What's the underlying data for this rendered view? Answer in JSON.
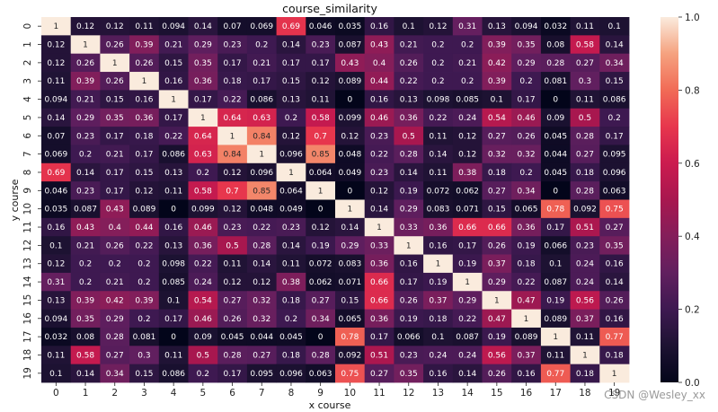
{
  "chart_data": {
    "type": "heatmap",
    "title": "course_similarity",
    "xlabel": "x course",
    "ylabel": "y course",
    "x_ticks": [
      "0",
      "1",
      "2",
      "3",
      "4",
      "5",
      "6",
      "7",
      "8",
      "9",
      "10",
      "11",
      "12",
      "13",
      "14",
      "15",
      "16",
      "17",
      "18",
      "19"
    ],
    "y_ticks": [
      "0",
      "1",
      "2",
      "3",
      "4",
      "5",
      "6",
      "7",
      "8",
      "9",
      "10",
      "11",
      "12",
      "13",
      "14",
      "15",
      "16",
      "17",
      "18",
      "19"
    ],
    "colorbar": {
      "min": 0.0,
      "max": 1.0,
      "ticks": [
        "0.0",
        "0.2",
        "0.4",
        "0.6",
        "0.8",
        "1.0"
      ]
    },
    "values": [
      [
        "1",
        "0.12",
        "0.12",
        "0.11",
        "0.094",
        "0.14",
        "0.07",
        "0.069",
        "0.69",
        "0.046",
        "0.035",
        "0.16",
        "0.1",
        "0.12",
        "0.31",
        "0.13",
        "0.094",
        "0.032",
        "0.11",
        "0.1"
      ],
      [
        "0.12",
        "1",
        "0.26",
        "0.39",
        "0.21",
        "0.29",
        "0.23",
        "0.2",
        "0.14",
        "0.23",
        "0.087",
        "0.43",
        "0.21",
        "0.2",
        "0.2",
        "0.39",
        "0.35",
        "0.08",
        "0.58",
        "0.14"
      ],
      [
        "0.12",
        "0.26",
        "1",
        "0.26",
        "0.15",
        "0.35",
        "0.17",
        "0.21",
        "0.17",
        "0.17",
        "0.43",
        "0.4",
        "0.26",
        "0.2",
        "0.21",
        "0.42",
        "0.29",
        "0.28",
        "0.27",
        "0.34"
      ],
      [
        "0.11",
        "0.39",
        "0.26",
        "1",
        "0.16",
        "0.36",
        "0.18",
        "0.17",
        "0.15",
        "0.12",
        "0.089",
        "0.44",
        "0.22",
        "0.2",
        "0.2",
        "0.39",
        "0.2",
        "0.081",
        "0.3",
        "0.15"
      ],
      [
        "0.094",
        "0.21",
        "0.15",
        "0.16",
        "1",
        "0.17",
        "0.22",
        "0.086",
        "0.13",
        "0.11",
        "0",
        "0.16",
        "0.13",
        "0.098",
        "0.085",
        "0.1",
        "0.17",
        "0",
        "0.11",
        "0.086"
      ],
      [
        "0.14",
        "0.29",
        "0.35",
        "0.36",
        "0.17",
        "1",
        "0.64",
        "0.63",
        "0.2",
        "0.58",
        "0.099",
        "0.46",
        "0.36",
        "0.22",
        "0.24",
        "0.54",
        "0.46",
        "0.09",
        "0.5",
        "0.2"
      ],
      [
        "0.07",
        "0.23",
        "0.17",
        "0.18",
        "0.22",
        "0.64",
        "1",
        "0.84",
        "0.12",
        "0.7",
        "0.12",
        "0.23",
        "0.5",
        "0.11",
        "0.12",
        "0.27",
        "0.26",
        "0.045",
        "0.28",
        "0.17"
      ],
      [
        "0.069",
        "0.2",
        "0.21",
        "0.17",
        "0.086",
        "0.63",
        "0.84",
        "1",
        "0.096",
        "0.85",
        "0.048",
        "0.22",
        "0.28",
        "0.14",
        "0.12",
        "0.32",
        "0.32",
        "0.044",
        "0.27",
        "0.095"
      ],
      [
        "0.69",
        "0.14",
        "0.17",
        "0.15",
        "0.13",
        "0.2",
        "0.12",
        "0.096",
        "1",
        "0.064",
        "0.049",
        "0.23",
        "0.14",
        "0.11",
        "0.38",
        "0.18",
        "0.2",
        "0.045",
        "0.18",
        "0.096"
      ],
      [
        "0.046",
        "0.23",
        "0.17",
        "0.12",
        "0.11",
        "0.58",
        "0.7",
        "0.85",
        "0.064",
        "1",
        "0",
        "0.12",
        "0.19",
        "0.072",
        "0.062",
        "0.27",
        "0.34",
        "0",
        "0.28",
        "0.063"
      ],
      [
        "0.035",
        "0.087",
        "0.43",
        "0.089",
        "0",
        "0.099",
        "0.12",
        "0.048",
        "0.049",
        "0",
        "1",
        "0.14",
        "0.29",
        "0.083",
        "0.071",
        "0.15",
        "0.065",
        "0.78",
        "0.092",
        "0.75"
      ],
      [
        "0.16",
        "0.43",
        "0.4",
        "0.44",
        "0.16",
        "0.46",
        "0.23",
        "0.22",
        "0.23",
        "0.12",
        "0.14",
        "1",
        "0.33",
        "0.36",
        "0.66",
        "0.66",
        "0.36",
        "0.17",
        "0.51",
        "0.27"
      ],
      [
        "0.1",
        "0.21",
        "0.26",
        "0.22",
        "0.13",
        "0.36",
        "0.5",
        "0.28",
        "0.14",
        "0.19",
        "0.29",
        "0.33",
        "1",
        "0.16",
        "0.17",
        "0.26",
        "0.19",
        "0.066",
        "0.23",
        "0.35"
      ],
      [
        "0.12",
        "0.2",
        "0.2",
        "0.2",
        "0.098",
        "0.22",
        "0.11",
        "0.14",
        "0.11",
        "0.072",
        "0.083",
        "0.36",
        "0.16",
        "1",
        "0.19",
        "0.37",
        "0.18",
        "0.1",
        "0.24",
        "0.16"
      ],
      [
        "0.31",
        "0.2",
        "0.21",
        "0.2",
        "0.085",
        "0.24",
        "0.12",
        "0.12",
        "0.38",
        "0.062",
        "0.071",
        "0.66",
        "0.17",
        "0.19",
        "1",
        "0.29",
        "0.22",
        "0.087",
        "0.24",
        "0.14"
      ],
      [
        "0.13",
        "0.39",
        "0.42",
        "0.39",
        "0.1",
        "0.54",
        "0.27",
        "0.32",
        "0.18",
        "0.27",
        "0.15",
        "0.66",
        "0.26",
        "0.37",
        "0.29",
        "1",
        "0.47",
        "0.19",
        "0.56",
        "0.26"
      ],
      [
        "0.094",
        "0.35",
        "0.29",
        "0.2",
        "0.17",
        "0.46",
        "0.26",
        "0.32",
        "0.2",
        "0.34",
        "0.065",
        "0.36",
        "0.19",
        "0.18",
        "0.22",
        "0.47",
        "1",
        "0.089",
        "0.37",
        "0.16"
      ],
      [
        "0.032",
        "0.08",
        "0.28",
        "0.081",
        "0",
        "0.09",
        "0.045",
        "0.044",
        "0.045",
        "0",
        "0.78",
        "0.17",
        "0.066",
        "0.1",
        "0.087",
        "0.19",
        "0.089",
        "1",
        "0.11",
        "0.77"
      ],
      [
        "0.11",
        "0.58",
        "0.27",
        "0.3",
        "0.11",
        "0.5",
        "0.28",
        "0.27",
        "0.18",
        "0.28",
        "0.092",
        "0.51",
        "0.23",
        "0.24",
        "0.24",
        "0.56",
        "0.37",
        "0.11",
        "1",
        "0.18"
      ],
      [
        "0.1",
        "0.14",
        "0.34",
        "0.15",
        "0.086",
        "0.2",
        "0.17",
        "0.095",
        "0.096",
        "0.063",
        "0.75",
        "0.27",
        "0.35",
        "0.16",
        "0.14",
        "0.26",
        "0.16",
        "0.77",
        "0.18",
        "1"
      ]
    ]
  },
  "watermark": "CSDN @Wesley_xx"
}
